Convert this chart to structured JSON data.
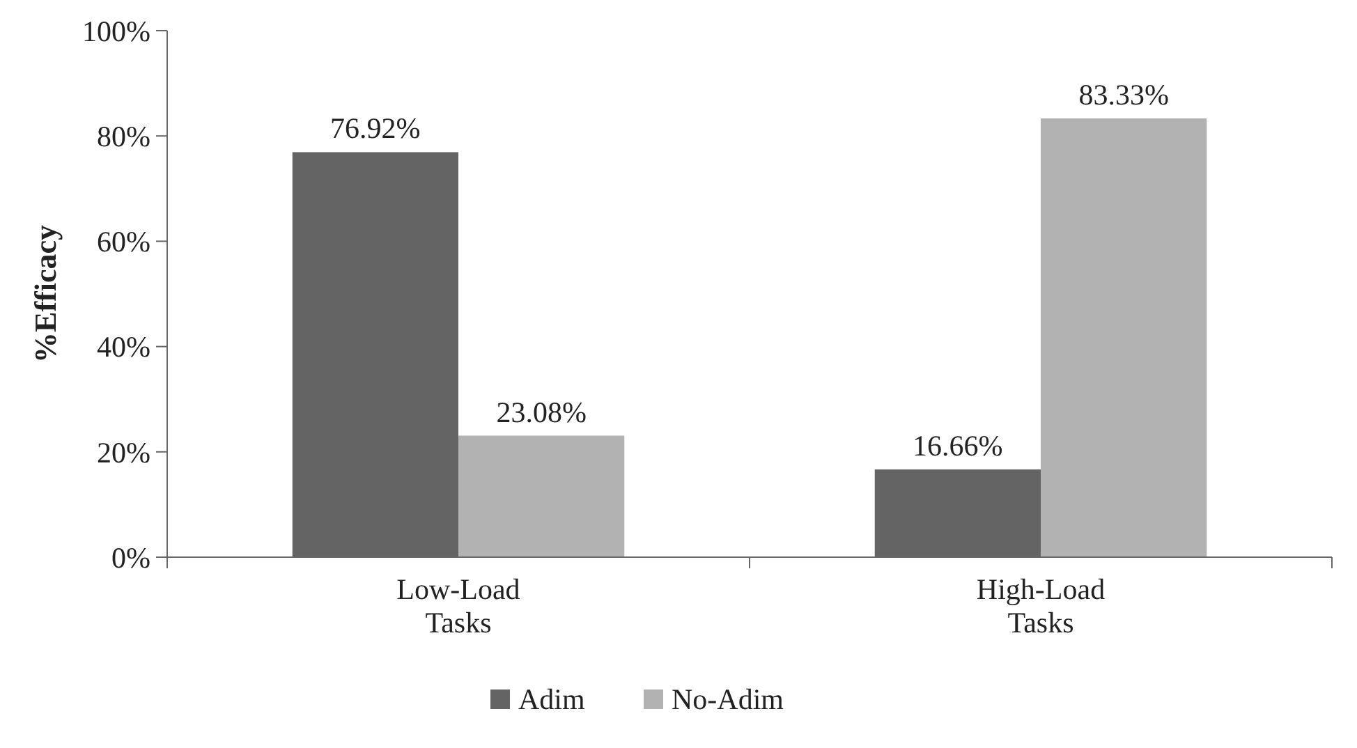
{
  "chart_data": {
    "type": "bar",
    "ylabel": "%Efficacy",
    "categories": [
      "Low-Load Tasks",
      "High-Load Tasks"
    ],
    "series": [
      {
        "name": "Adim",
        "color": "#646464",
        "values": [
          76.92,
          16.66
        ]
      },
      {
        "name": "No-Adim",
        "color": "#b2b2b2",
        "values": [
          23.08,
          83.33
        ]
      }
    ],
    "ylim": [
      0,
      100
    ],
    "yticks": [
      {
        "value": 0,
        "label": "0%"
      },
      {
        "value": 20,
        "label": "20%"
      },
      {
        "value": 40,
        "label": "40%"
      },
      {
        "value": 60,
        "label": "60%"
      },
      {
        "value": 80,
        "label": "80%"
      },
      {
        "value": 100,
        "label": "100%"
      }
    ],
    "value_labels": [
      [
        "76.92%",
        "16.66%"
      ],
      [
        "23.08%",
        "83.33%"
      ]
    ],
    "legend": "bottom",
    "grid": false
  }
}
